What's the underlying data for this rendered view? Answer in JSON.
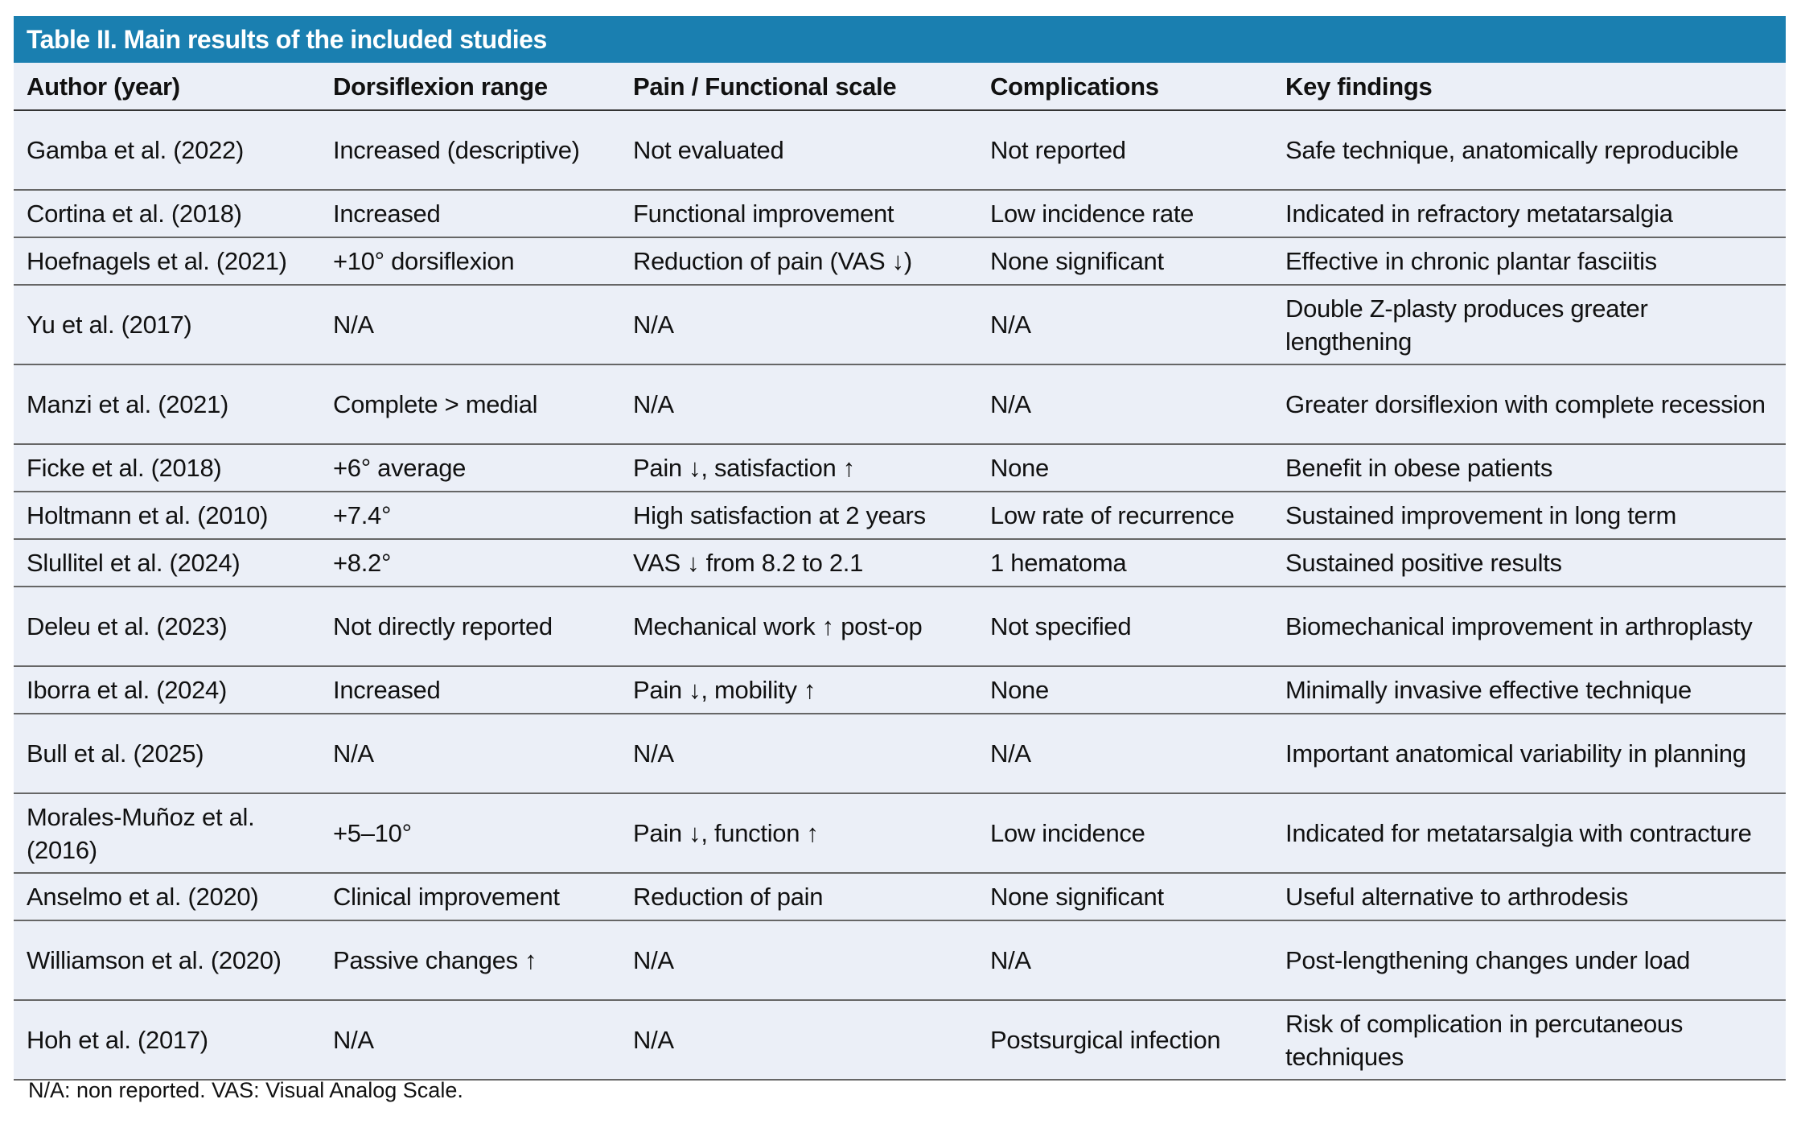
{
  "table": {
    "title": "Table II. Main results of the included studies",
    "title_bg": "#1a7fb0",
    "headers": [
      "Author (year)",
      "Dorsiflexion range",
      "Pain / Functional scale",
      "Complications",
      "Key findings"
    ],
    "rows": [
      [
        "Gamba et al. (2022)",
        "Increased (descriptive)",
        "Not evaluated",
        "Not reported",
        "Safe technique, anatomically reproducible"
      ],
      [
        "Cortina et al. (2018)",
        "Increased",
        "Functional improvement",
        "Low incidence rate",
        "Indicated in refractory metatarsalgia"
      ],
      [
        "Hoefnagels et al. (2021)",
        "+10° dorsiflexion",
        "Reduction of pain (VAS ↓)",
        "None significant",
        "Effective in chronic plantar fasciitis"
      ],
      [
        "Yu et al. (2017)",
        "N/A",
        "N/A",
        "N/A",
        "Double Z-plasty produces greater lengthening"
      ],
      [
        "Manzi et al. (2021)",
        "Complete > medial",
        "N/A",
        "N/A",
        "Greater dorsiflexion with complete recession"
      ],
      [
        "Ficke et al. (2018)",
        "+6° average",
        "Pain ↓, satisfaction ↑",
        "None",
        "Benefit in obese patients"
      ],
      [
        "Holtmann et al. (2010)",
        "+7.4°",
        "High satisfaction at 2 years",
        "Low rate of recurrence",
        "Sustained improvement in long term"
      ],
      [
        "Slullitel et al. (2024)",
        "+8.2°",
        "VAS ↓ from 8.2 to 2.1",
        "1 hematoma",
        "Sustained positive results"
      ],
      [
        "Deleu et al. (2023)",
        "Not directly reported",
        "Mechanical work ↑ post-op",
        "Not specified",
        "Biomechanical improvement in arthroplasty"
      ],
      [
        "Iborra et al. (2024)",
        "Increased",
        "Pain ↓, mobility ↑",
        "None",
        "Minimally invasive effective technique"
      ],
      [
        "Bull et al. (2025)",
        "N/A",
        "N/A",
        "N/A",
        "Important anatomical variability in planning"
      ],
      [
        "Morales-Muñoz et al. (2016)",
        "+5–10°",
        "Pain ↓, function ↑",
        "Low incidence",
        "Indicated for metatarsalgia with contracture"
      ],
      [
        "Anselmo et al. (2020)",
        "Clinical improvement",
        "Reduction of pain",
        "None significant",
        "Useful alternative to arthrodesis"
      ],
      [
        "Williamson et al. (2020)",
        "Passive changes ↑",
        "N/A",
        "N/A",
        "Post-lengthening changes under load"
      ],
      [
        "Hoh et al. (2017)",
        "N/A",
        "N/A",
        "Postsurgical infection",
        "Risk of complication in percutaneous techniques"
      ]
    ],
    "footnote": "N/A: non reported. VAS: Visual Analog Scale."
  }
}
